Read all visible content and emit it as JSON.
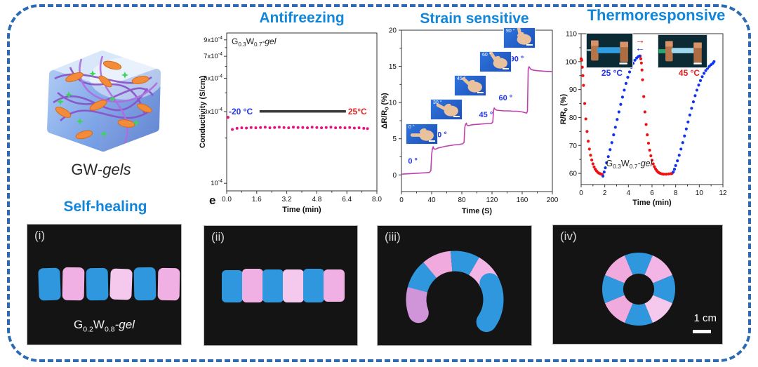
{
  "headings": {
    "antifreezing": "Antifreezing",
    "strain_sensitive": "Strain sensitive",
    "thermoresponsive": "Thermoresponsive",
    "self_healing": "Self-healing"
  },
  "gw_gels_label": {
    "prefix": "GW-",
    "italic": "gels"
  },
  "panel_letter_e": "e",
  "gel_g03": {
    "el1": "G",
    "sub1": "0.3",
    "el2": "W",
    "sub2": "0.7",
    "suffix": "-gel"
  },
  "gel_g02": {
    "el1": "G",
    "sub1": "0.2",
    "el2": "W",
    "sub2": "0.8",
    "suffix": "-gel"
  },
  "self_healing_panels": {
    "letters": [
      "(i)",
      "(ii)",
      "(iii)",
      "(iv)"
    ],
    "scale_label": "1 cm"
  },
  "thermo_insets": {
    "left_label": "25 °C",
    "right_label": "45 °C"
  },
  "colors": {
    "heading": "#1286d9",
    "border": "#2b6bb2",
    "antifreeze_dots": "#e8117f",
    "strain_line": "#bf3fae",
    "thermo_red": "#ee1111",
    "thermo_blue": "#1133ee",
    "cold_label": "#2233ee",
    "hot_label": "#e32222",
    "gel_blue": "#2e97de",
    "gel_pink": "#f0b0e4"
  },
  "chart_data": [
    {
      "type": "scatter",
      "title": "Antifreezing",
      "xlabel": "Time (min)",
      "ylabel": "Conductivity (S/cm)",
      "xlim": [
        0,
        8
      ],
      "x_ticks": [
        0,
        1.6,
        3.2,
        4.8,
        6.4,
        8
      ],
      "x_minor": [
        0.8,
        2.4,
        4,
        5.6,
        7.2
      ],
      "y_scale": "log",
      "ylim": [
        8.9e-05,
        0.001
      ],
      "y_ticks": [
        {
          "coef": "9x10",
          "exp": "-4",
          "value": 0.0009
        },
        {
          "coef": "7x10",
          "exp": "-4",
          "value": 0.0007
        },
        {
          "coef": "5x10",
          "exp": "-4",
          "value": 0.0005
        },
        {
          "coef": "3x10",
          "exp": "-4",
          "value": 0.0003
        },
        {
          "coef": "10",
          "exp": "-4",
          "value": 0.0001
        }
      ],
      "y_minor": [
        0.0002,
        0.0004,
        0.0006,
        0.0008
      ],
      "annotation": "G0.3W0.7-gel",
      "cold_hot": {
        "cold": "-20 °C",
        "hot": "25°C",
        "bar_x": [
          1.75,
          6.35
        ],
        "bar_y": 0.0003
      },
      "series": [
        {
          "name": "conductivity",
          "color": "#e8117f",
          "points": [
            [
              0.07,
              0.000275
            ],
            [
              0.3,
              0.000228
            ],
            [
              0.55,
              0.000232
            ],
            [
              0.8,
              0.000234
            ],
            [
              1.05,
              0.000233
            ],
            [
              1.3,
              0.000235
            ],
            [
              1.55,
              0.000234
            ],
            [
              1.8,
              0.000235
            ],
            [
              2.05,
              0.000236
            ],
            [
              2.3,
              0.000234
            ],
            [
              2.55,
              0.000235
            ],
            [
              2.8,
              0.000236
            ],
            [
              3.05,
              0.000235
            ],
            [
              3.3,
              0.000234
            ],
            [
              3.55,
              0.000236
            ],
            [
              3.8,
              0.000235
            ],
            [
              4.05,
              0.000235
            ],
            [
              4.3,
              0.000234
            ],
            [
              4.55,
              0.000236
            ],
            [
              4.8,
              0.000235
            ],
            [
              5.05,
              0.000234
            ],
            [
              5.3,
              0.000235
            ],
            [
              5.55,
              0.000236
            ],
            [
              5.8,
              0.000234
            ],
            [
              6.05,
              0.000235
            ],
            [
              6.3,
              0.000234
            ],
            [
              6.55,
              0.000235
            ],
            [
              6.8,
              0.000233
            ],
            [
              7.05,
              0.000234
            ],
            [
              7.3,
              0.000232
            ],
            [
              7.5,
              0.000231
            ]
          ]
        }
      ]
    },
    {
      "type": "line",
      "title": "Strain sensitive",
      "xlabel": "Time (S)",
      "ylabel_parts": {
        "pre": "ΔR/R",
        "sub": "0",
        "post": " (%)"
      },
      "xlim": [
        0,
        200
      ],
      "x_ticks": [
        0,
        40,
        80,
        120,
        160,
        200
      ],
      "x_minor": [
        20,
        60,
        100,
        140,
        180
      ],
      "ylim": [
        -2.3,
        20
      ],
      "y_ticks": [
        0,
        5,
        10,
        15,
        20
      ],
      "y_minor": [
        2.5,
        7.5,
        12.5,
        17.5
      ],
      "angle_insets": [
        "0 °",
        "30 °",
        "45 °",
        "60 °",
        "90 °"
      ],
      "step_labels": [
        {
          "text": "0 °",
          "x": 15,
          "y": 1.6
        },
        {
          "text": "30 °",
          "x": 51,
          "y": 5.2
        },
        {
          "text": "45 °",
          "x": 112,
          "y": 8.0
        },
        {
          "text": "60 °",
          "x": 138,
          "y": 10.3
        },
        {
          "text": "90 °",
          "x": 153,
          "y": 15.7
        }
      ],
      "series": [
        {
          "name": "resistance-change",
          "color": "#bf3fae",
          "points": [
            [
              0,
              0.1
            ],
            [
              8,
              0.15
            ],
            [
              16,
              0.2
            ],
            [
              24,
              0.25
            ],
            [
              32,
              0.3
            ],
            [
              37,
              0.35
            ],
            [
              39,
              0.6
            ],
            [
              40,
              2.8
            ],
            [
              41,
              3.6
            ],
            [
              42,
              3.9
            ],
            [
              43,
              3.6
            ],
            [
              45,
              3.55
            ],
            [
              48,
              3.7
            ],
            [
              52,
              3.8
            ],
            [
              58,
              3.95
            ],
            [
              64,
              4.05
            ],
            [
              70,
              4.15
            ],
            [
              76,
              4.2
            ],
            [
              81,
              4.3
            ],
            [
              83,
              4.5
            ],
            [
              84,
              6.6
            ],
            [
              85,
              7.0
            ],
            [
              86,
              7.15
            ],
            [
              87,
              6.85
            ],
            [
              89,
              6.8
            ],
            [
              92,
              6.9
            ],
            [
              96,
              6.95
            ],
            [
              102,
              7.0
            ],
            [
              108,
              7.05
            ],
            [
              114,
              7.1
            ],
            [
              119,
              7.1
            ],
            [
              121,
              7.3
            ],
            [
              122,
              8.9
            ],
            [
              123,
              9.25
            ],
            [
              124,
              9.1
            ],
            [
              126,
              8.95
            ],
            [
              130,
              8.9
            ],
            [
              136,
              8.85
            ],
            [
              142,
              8.85
            ],
            [
              148,
              8.8
            ],
            [
              154,
              8.8
            ],
            [
              160,
              8.7
            ],
            [
              164,
              8.6
            ],
            [
              166,
              8.55
            ],
            [
              167,
              8.8
            ],
            [
              168,
              14.6
            ],
            [
              169,
              14.95
            ],
            [
              170,
              14.8
            ],
            [
              172,
              14.55
            ],
            [
              176,
              14.45
            ],
            [
              181,
              14.4
            ],
            [
              187,
              14.35
            ],
            [
              193,
              14.3
            ],
            [
              200,
              14.3
            ]
          ]
        }
      ]
    },
    {
      "type": "scatter",
      "title": "Thermoresponsive",
      "xlabel": "Time (min)",
      "ylabel_parts": {
        "pre": "R/R",
        "sub": "0",
        "post": " (%)"
      },
      "xlim": [
        0,
        12
      ],
      "x_ticks": [
        0,
        2,
        4,
        6,
        8,
        10,
        12
      ],
      "x_minor": [
        1,
        3,
        5,
        7,
        9,
        11
      ],
      "ylim": [
        56,
        110
      ],
      "y_ticks": [
        60,
        70,
        80,
        90,
        100,
        110
      ],
      "y_minor": [
        65,
        75,
        85,
        95,
        105
      ],
      "annotation": "G0.3W0.7-gel",
      "series": [
        {
          "name": "at-45C-heating",
          "color": "#ee1111",
          "points": [
            [
              0,
              101
            ],
            [
              0.05,
              100.5
            ],
            [
              0.1,
              98
            ],
            [
              0.15,
              95
            ],
            [
              0.2,
              91.5
            ],
            [
              0.3,
              85
            ],
            [
              0.4,
              79.5
            ],
            [
              0.5,
              75
            ],
            [
              0.6,
              71.5
            ],
            [
              0.7,
              68.7
            ],
            [
              0.8,
              66.5
            ],
            [
              0.9,
              64.8
            ],
            [
              1.0,
              63.4
            ],
            [
              1.1,
              62.3
            ],
            [
              1.2,
              61.5
            ],
            [
              1.3,
              60.9
            ],
            [
              1.4,
              60.4
            ],
            [
              1.5,
              60.1
            ],
            [
              1.6,
              59.9
            ],
            [
              1.7,
              59.7
            ],
            [
              1.8,
              59.6
            ],
            [
              5.0,
              102
            ],
            [
              5.05,
              101
            ],
            [
              5.1,
              99.5
            ],
            [
              5.15,
              97
            ],
            [
              5.2,
              93.5
            ],
            [
              5.3,
              87.5
            ],
            [
              5.4,
              82
            ],
            [
              5.5,
              77.5
            ],
            [
              5.6,
              73.8
            ],
            [
              5.7,
              70.8
            ],
            [
              5.8,
              68.3
            ],
            [
              5.9,
              66.3
            ],
            [
              6.0,
              64.7
            ],
            [
              6.1,
              63.4
            ],
            [
              6.2,
              62.4
            ],
            [
              6.3,
              61.6
            ],
            [
              6.4,
              61.0
            ],
            [
              6.5,
              60.5
            ],
            [
              6.6,
              60.2
            ],
            [
              6.7,
              60.0
            ],
            [
              6.85,
              59.8
            ],
            [
              7.0,
              59.7
            ],
            [
              7.2,
              59.7
            ],
            [
              7.4,
              59.8
            ],
            [
              7.6,
              59.9
            ],
            [
              7.7,
              60.0
            ]
          ]
        },
        {
          "name": "at-25C-cooling",
          "color": "#1133ee",
          "points": [
            [
              1.85,
              59
            ],
            [
              1.95,
              60.5
            ],
            [
              2.05,
              62
            ],
            [
              2.15,
              63.8
            ],
            [
              2.3,
              66
            ],
            [
              2.45,
              68.5
            ],
            [
              2.6,
              71
            ],
            [
              2.75,
              73.8
            ],
            [
              2.9,
              76.5
            ],
            [
              3.05,
              79.3
            ],
            [
              3.2,
              82
            ],
            [
              3.35,
              84.7
            ],
            [
              3.5,
              87.3
            ],
            [
              3.65,
              89.8
            ],
            [
              3.8,
              92.2
            ],
            [
              3.95,
              94.4
            ],
            [
              4.1,
              96.3
            ],
            [
              4.25,
              98
            ],
            [
              4.4,
              99.4
            ],
            [
              4.55,
              100.5
            ],
            [
              4.7,
              101.3
            ],
            [
              4.85,
              101.8
            ],
            [
              4.95,
              102
            ],
            [
              7.8,
              60.5
            ],
            [
              7.9,
              61.5
            ],
            [
              8.0,
              62.8
            ],
            [
              8.15,
              64.5
            ],
            [
              8.3,
              66.5
            ],
            [
              8.45,
              68.7
            ],
            [
              8.6,
              71
            ],
            [
              8.75,
              73.4
            ],
            [
              8.9,
              75.9
            ],
            [
              9.05,
              78.4
            ],
            [
              9.2,
              80.9
            ],
            [
              9.35,
              83.3
            ],
            [
              9.5,
              85.6
            ],
            [
              9.65,
              87.8
            ],
            [
              9.8,
              89.8
            ],
            [
              9.95,
              91.6
            ],
            [
              10.1,
              93.2
            ],
            [
              10.25,
              94.6
            ],
            [
              10.4,
              95.8
            ],
            [
              10.55,
              96.8
            ],
            [
              10.7,
              97.6
            ],
            [
              10.85,
              98.3
            ],
            [
              11.0,
              98.9
            ],
            [
              11.15,
              99.4
            ],
            [
              11.25,
              100
            ]
          ]
        }
      ]
    }
  ]
}
